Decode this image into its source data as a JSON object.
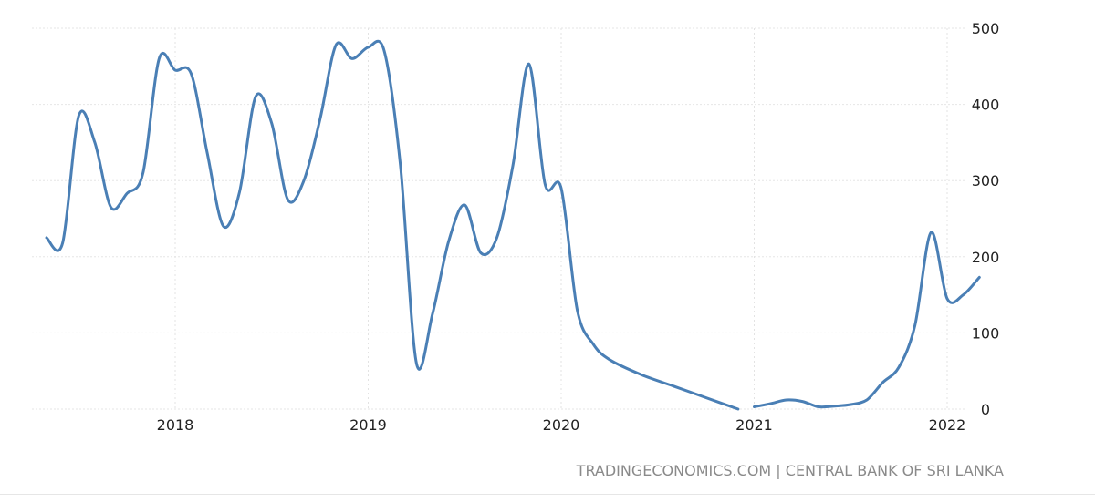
{
  "chart_data": {
    "type": "line",
    "title": "",
    "xlabel": "",
    "ylabel": "",
    "x_tick_labels": [
      "2018",
      "2019",
      "2020",
      "2021",
      "2022"
    ],
    "y_tick_labels": [
      "0",
      "100",
      "200",
      "300",
      "400",
      "500"
    ],
    "ylim": [
      0,
      500
    ],
    "xlim": [
      "2017-04",
      "2022-03"
    ],
    "grid": true,
    "legend": "none",
    "series": [
      {
        "color": "#4a7fb5",
        "x": [
          "2017-05",
          "2017-06",
          "2017-07",
          "2017-08",
          "2017-09",
          "2017-10",
          "2017-11",
          "2017-12",
          "2018-01",
          "2018-02",
          "2018-03",
          "2018-04",
          "2018-05",
          "2018-06",
          "2018-07",
          "2018-08",
          "2018-09",
          "2018-10",
          "2018-11",
          "2018-12",
          "2019-01",
          "2019-02",
          "2019-03",
          "2019-04",
          "2019-05",
          "2019-06",
          "2019-07",
          "2019-08",
          "2019-09",
          "2019-10",
          "2019-11",
          "2019-12",
          "2020-01",
          "2020-02",
          "2020-03",
          "2020-04",
          "2020-06",
          "2020-08",
          "2020-10",
          "2020-12"
        ],
        "y": [
          225,
          218,
          385,
          350,
          265,
          283,
          310,
          460,
          445,
          440,
          335,
          240,
          285,
          410,
          375,
          275,
          300,
          380,
          478,
          460,
          475,
          470,
          320,
          60,
          125,
          220,
          268,
          205,
          225,
          320,
          453,
          295,
          290,
          130,
          85,
          65,
          45,
          30,
          15,
          0
        ]
      },
      {
        "color": "#4a7fb5",
        "x": [
          "2021-01",
          "2021-02",
          "2021-03",
          "2021-04",
          "2021-05",
          "2021-06",
          "2021-07",
          "2021-08",
          "2021-09",
          "2021-10",
          "2021-11",
          "2021-12",
          "2022-01",
          "2022-02",
          "2022-03"
        ],
        "y": [
          3,
          7,
          12,
          10,
          3,
          4,
          6,
          12,
          35,
          55,
          110,
          232,
          145,
          150,
          173
        ]
      }
    ],
    "source": "TRADINGECONOMICS.COM | CENTRAL BANK OF SRI LANKA"
  }
}
